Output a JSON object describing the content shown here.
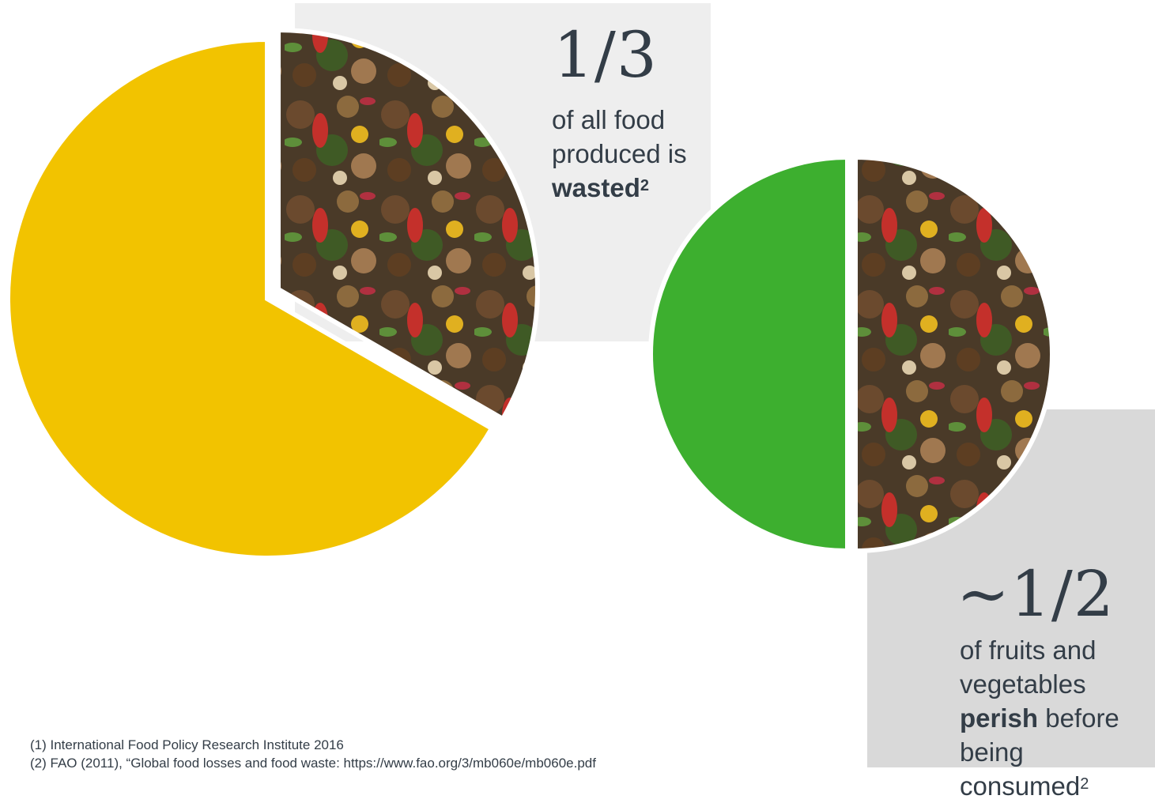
{
  "chart_data": [
    {
      "type": "pie",
      "slices": [
        {
          "label": "",
          "value": 0.6667,
          "color": "#f2c300",
          "fill": "solid"
        },
        {
          "label": "wasted",
          "value": 0.3333,
          "color": "#5a4530",
          "fill": "food-waste-image"
        }
      ],
      "annotation": {
        "fraction": "1/3",
        "line1": "of all food",
        "line2": "produced is",
        "emphasis": "wasted",
        "ref": "2"
      }
    },
    {
      "type": "pie",
      "slices": [
        {
          "label": "",
          "value": 0.5,
          "color": "#3daf2f",
          "fill": "solid"
        },
        {
          "label": "perish",
          "value": 0.5,
          "color": "#5a4530",
          "fill": "food-waste-image"
        }
      ],
      "annotation": {
        "fraction": "~1/2",
        "line1": "of fruits and",
        "line2": "vegetables",
        "emphasis": "perish",
        "after_emphasis": " before",
        "line4": "being consumed",
        "ref": "2"
      }
    }
  ],
  "footnotes": [
    "(1) International Food Policy Research Institute 2016",
    "(2) FAO (2011), “Global food losses and food waste: https://www.fao.org/3/mb060e/mb060e.pdf"
  ],
  "colors": {
    "yellow": "#f2c300",
    "green": "#3daf2f",
    "text": "#333d47",
    "panel_light": "#eeeeee",
    "panel_dark": "#d9d9d9"
  }
}
